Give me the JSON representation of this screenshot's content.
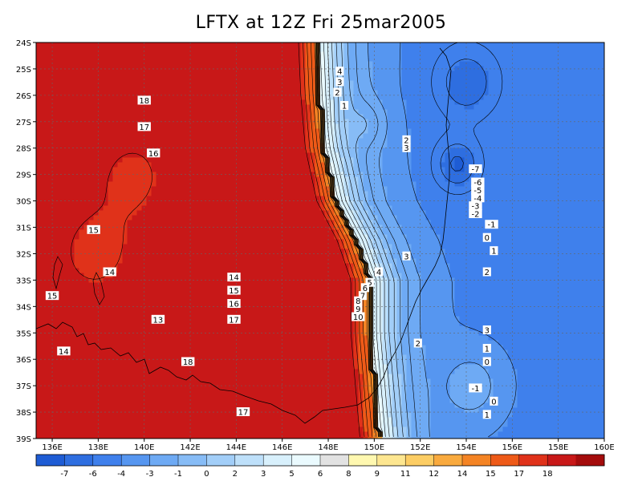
{
  "title": "LFTX at 12Z Fri 25mar2005",
  "map": {
    "lat_labels": [
      "24S",
      "25S",
      "26S",
      "27S",
      "28S",
      "29S",
      "30S",
      "31S",
      "32S",
      "33S",
      "34S",
      "35S",
      "36S",
      "37S",
      "38S",
      "39S"
    ],
    "lon_labels": [
      "136E",
      "138E",
      "140E",
      "142E",
      "144E",
      "146E",
      "148E",
      "150E",
      "152E",
      "154E",
      "156E",
      "158E",
      "160E"
    ]
  },
  "contour_labels": [
    {
      "text": "18",
      "lat": -26.2,
      "lon": 140.0
    },
    {
      "text": "17",
      "lat": -27.2,
      "lon": 140.0
    },
    {
      "text": "16",
      "lat": -28.2,
      "lon": 140.4
    },
    {
      "text": "15",
      "lat": -31.1,
      "lon": 137.8
    },
    {
      "text": "14",
      "lat": -32.7,
      "lon": 138.5
    },
    {
      "text": "15",
      "lat": -33.6,
      "lon": 136.0
    },
    {
      "text": "13",
      "lat": -34.5,
      "lon": 140.6
    },
    {
      "text": "14",
      "lat": -35.7,
      "lon": 136.5
    },
    {
      "text": "18",
      "lat": -36.1,
      "lon": 141.9
    },
    {
      "text": "14",
      "lat": -32.9,
      "lon": 143.9
    },
    {
      "text": "15",
      "lat": -33.4,
      "lon": 143.9
    },
    {
      "text": "16",
      "lat": -33.9,
      "lon": 143.9
    },
    {
      "text": "17",
      "lat": -34.5,
      "lon": 143.9
    },
    {
      "text": "17",
      "lat": -38.0,
      "lon": 144.3
    },
    {
      "text": "4",
      "lat": -25.1,
      "lon": 148.5
    },
    {
      "text": "3",
      "lat": -25.5,
      "lon": 148.5
    },
    {
      "text": "2",
      "lat": -25.9,
      "lon": 148.4
    },
    {
      "text": "1",
      "lat": -26.4,
      "lon": 148.7
    },
    {
      "text": "2",
      "lat": -27.7,
      "lon": 151.4
    },
    {
      "text": "3",
      "lat": -28.0,
      "lon": 151.4
    },
    {
      "text": "-7",
      "lat": -28.8,
      "lon": 154.4
    },
    {
      "text": "-6",
      "lat": -29.3,
      "lon": 154.5
    },
    {
      "text": "-5",
      "lat": -29.6,
      "lon": 154.5
    },
    {
      "text": "-4",
      "lat": -29.9,
      "lon": 154.5
    },
    {
      "text": "-3",
      "lat": -30.2,
      "lon": 154.4
    },
    {
      "text": "-2",
      "lat": -30.5,
      "lon": 154.4
    },
    {
      "text": "-1",
      "lat": -30.9,
      "lon": 155.1
    },
    {
      "text": "0",
      "lat": -31.4,
      "lon": 154.9
    },
    {
      "text": "1",
      "lat": -31.9,
      "lon": 155.2
    },
    {
      "text": "2",
      "lat": -32.7,
      "lon": 154.9
    },
    {
      "text": "3",
      "lat": -32.1,
      "lon": 151.4
    },
    {
      "text": "4",
      "lat": -32.7,
      "lon": 150.2
    },
    {
      "text": "5",
      "lat": -33.1,
      "lon": 149.8
    },
    {
      "text": "6",
      "lat": -33.3,
      "lon": 149.6
    },
    {
      "text": "7",
      "lat": -33.6,
      "lon": 149.5
    },
    {
      "text": "8",
      "lat": -33.8,
      "lon": 149.3
    },
    {
      "text": "9",
      "lat": -34.1,
      "lon": 149.3
    },
    {
      "text": "10",
      "lat": -34.4,
      "lon": 149.3
    },
    {
      "text": "3",
      "lat": -34.9,
      "lon": 154.9
    },
    {
      "text": "2",
      "lat": -35.4,
      "lon": 151.9
    },
    {
      "text": "1",
      "lat": -35.6,
      "lon": 154.9
    },
    {
      "text": "0",
      "lat": -36.1,
      "lon": 154.9
    },
    {
      "text": "-1",
      "lat": -37.1,
      "lon": 154.4
    },
    {
      "text": "0",
      "lat": -37.6,
      "lon": 155.2
    },
    {
      "text": "1",
      "lat": -38.1,
      "lon": 154.9
    }
  ],
  "colorbar": {
    "labels": [
      "-7",
      "-6",
      "-4",
      "-3",
      "-1",
      "0",
      "2",
      "3",
      "5",
      "6",
      "8",
      "9",
      "11",
      "12",
      "14",
      "15",
      "17",
      "18"
    ],
    "colors": [
      "#1e5cd4",
      "#2e6ee0",
      "#3f80ec",
      "#5696f0",
      "#6eaaf4",
      "#87bcf6",
      "#a2cef8",
      "#bee0fa",
      "#d8f0fc",
      "#eafafe",
      "#e2e2e2",
      "#fff8b0",
      "#fde690",
      "#fccd64",
      "#f9aa3e",
      "#f48424",
      "#ee5a18",
      "#e0321a",
      "#c81818",
      "#a40c0c"
    ]
  },
  "field": {
    "centers": [
      {
        "lat": -25.2,
        "lon": 141.5,
        "v": 19.0,
        "s": 1.8
      },
      {
        "lat": -37.0,
        "lon": 141.6,
        "v": 19.5,
        "s": 1.5
      },
      {
        "lat": -36.0,
        "lon": 144.2,
        "v": 18.0,
        "s": 2.0
      },
      {
        "lat": -32.0,
        "lon": 137.8,
        "v": 15.5,
        "s": 2.5
      },
      {
        "lat": -29.0,
        "lon": 139.5,
        "v": 16.0,
        "s": 2.6
      },
      {
        "lat": -25.5,
        "lon": 154.0,
        "v": -7.5,
        "s": 1.4
      },
      {
        "lat": -28.6,
        "lon": 153.6,
        "v": -8.0,
        "s": 1.0
      },
      {
        "lat": -37.0,
        "lon": 154.2,
        "v": -2.0,
        "s": 1.4
      },
      {
        "lat": -27.1,
        "lon": 149.5,
        "v": -0.5,
        "s": 0.9
      }
    ],
    "front": [
      {
        "lat": -24,
        "lon": 147.5
      },
      {
        "lat": -26,
        "lon": 147.6
      },
      {
        "lat": -28,
        "lon": 147.8
      },
      {
        "lat": -30,
        "lon": 148.3
      },
      {
        "lat": -31.5,
        "lon": 149.2
      },
      {
        "lat": -33,
        "lon": 149.8
      },
      {
        "lat": -35,
        "lon": 149.8
      },
      {
        "lat": -37,
        "lon": 150.0
      },
      {
        "lat": -39,
        "lon": 150.2
      }
    ]
  }
}
